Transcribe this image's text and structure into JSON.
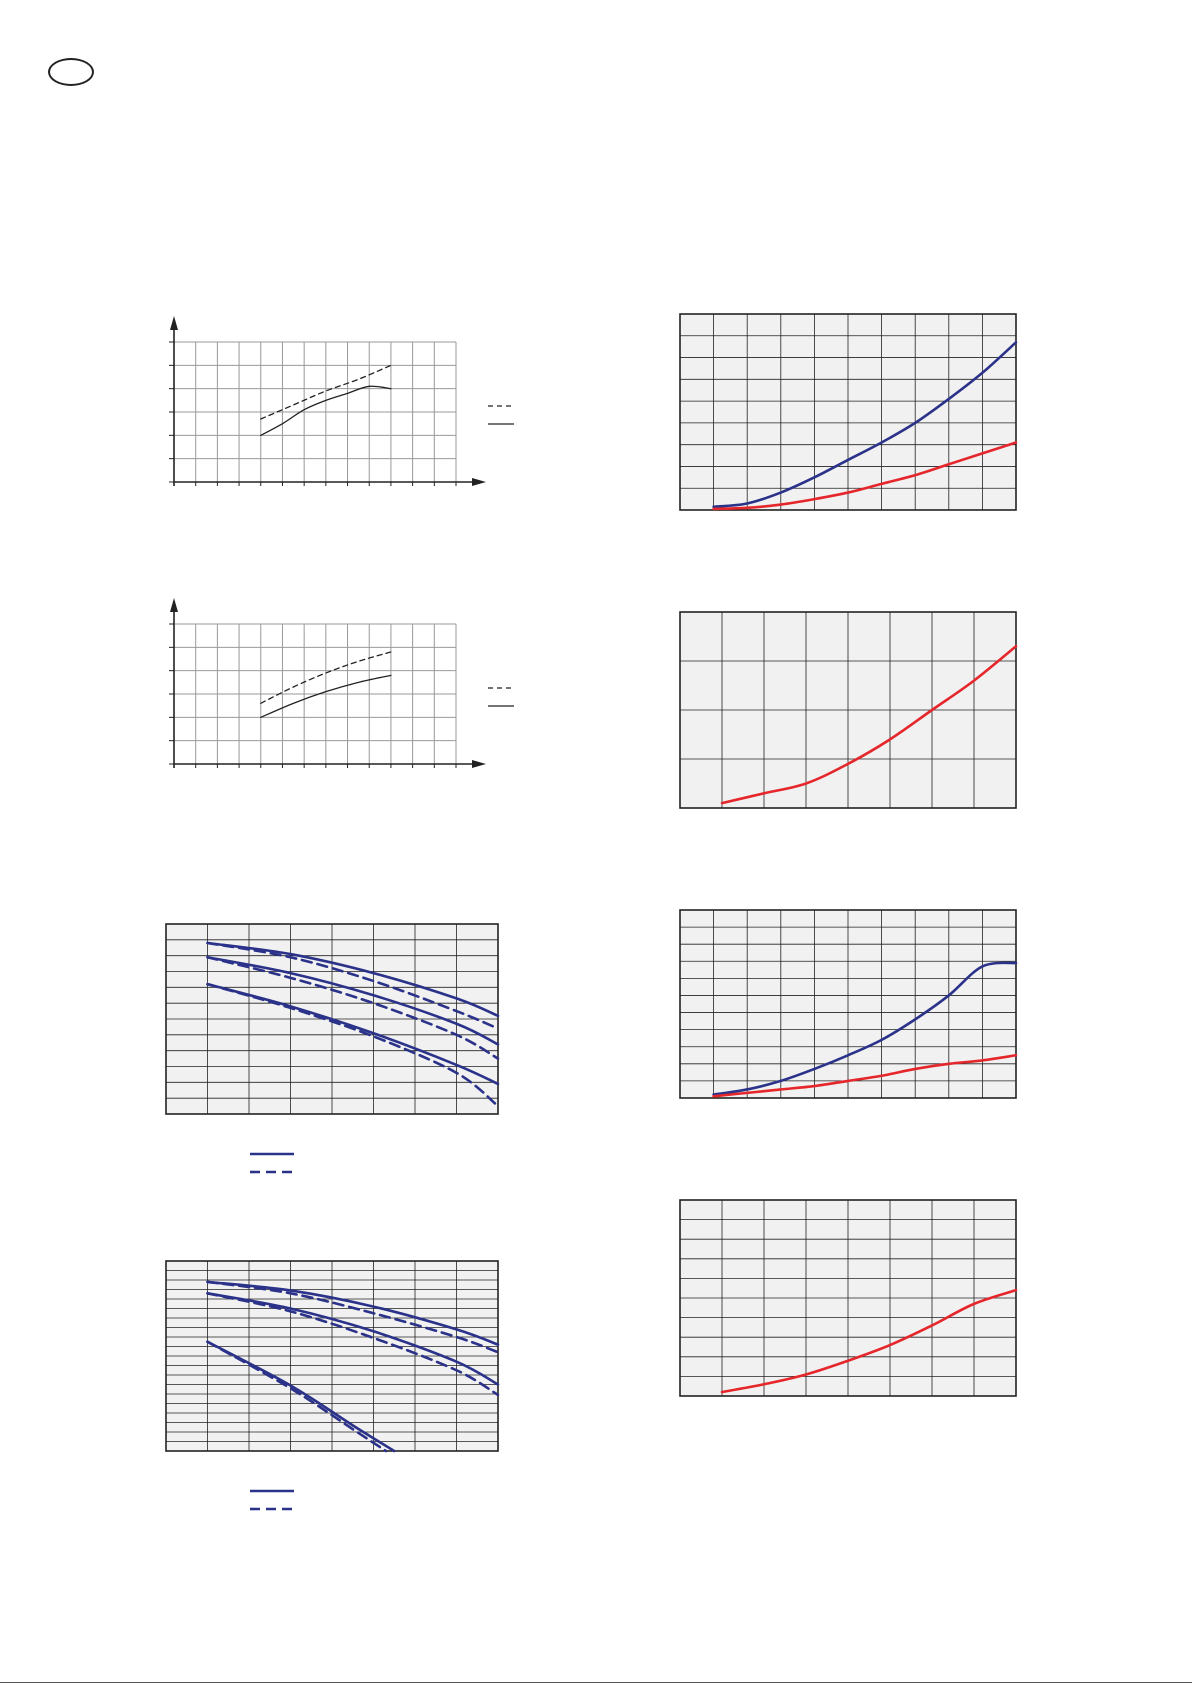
{
  "colors": {
    "navy": "#2b3289",
    "red": "#e5262b",
    "black": "#222222",
    "grid": "#999999",
    "panel": "#f1f1f1"
  },
  "chart_data": [
    {
      "type": "line",
      "grid": true,
      "xlim": [
        0,
        13
      ],
      "ylim": [
        0,
        6
      ],
      "series": [
        {
          "style": "dashed",
          "x": [
            4,
            5.5,
            7,
            8.5,
            10
          ],
          "y": [
            2.7,
            3.3,
            3.9,
            4.4,
            5.0
          ]
        },
        {
          "style": "solid",
          "x": [
            4,
            5,
            6,
            7,
            8,
            9,
            10
          ],
          "y": [
            2.0,
            2.5,
            3.1,
            3.5,
            3.8,
            4.1,
            4.0
          ]
        }
      ],
      "legend": {
        "placement": "right",
        "entries": [
          {
            "style": "dashed"
          },
          {
            "style": "solid"
          }
        ]
      }
    },
    {
      "type": "line",
      "grid": true,
      "xlim": [
        0,
        13
      ],
      "ylim": [
        0,
        6
      ],
      "series": [
        {
          "style": "dashed",
          "x": [
            4,
            5.5,
            7,
            8.5,
            10
          ],
          "y": [
            2.6,
            3.3,
            3.9,
            4.4,
            4.8
          ]
        },
        {
          "style": "solid",
          "x": [
            4,
            5.5,
            7,
            8.5,
            10
          ],
          "y": [
            2.0,
            2.6,
            3.1,
            3.5,
            3.8
          ]
        }
      ],
      "legend": {
        "placement": "right",
        "entries": [
          {
            "style": "dashed"
          },
          {
            "style": "solid"
          }
        ]
      }
    },
    {
      "type": "line",
      "grid": true,
      "xlim": [
        0,
        8
      ],
      "ylim": [
        0,
        12
      ],
      "series": [
        {
          "color": "#2b3289",
          "style": "solid",
          "x": [
            1,
            3,
            5,
            7,
            8
          ],
          "y": [
            10.8,
            10.1,
            8.9,
            7.3,
            6.2
          ]
        },
        {
          "color": "#2b3289",
          "style": "dashed",
          "x": [
            1,
            3,
            5,
            7,
            8
          ],
          "y": [
            10.8,
            9.9,
            8.4,
            6.5,
            5.4
          ]
        },
        {
          "color": "#2b3289",
          "style": "solid",
          "x": [
            1,
            3,
            5,
            7,
            8
          ],
          "y": [
            9.9,
            8.9,
            7.5,
            5.7,
            4.4
          ]
        },
        {
          "color": "#2b3289",
          "style": "dashed",
          "x": [
            1,
            3,
            5,
            7,
            8
          ],
          "y": [
            9.9,
            8.6,
            7.0,
            5.0,
            3.5
          ]
        },
        {
          "color": "#2b3289",
          "style": "solid",
          "x": [
            1,
            3,
            5,
            7,
            8
          ],
          "y": [
            8.2,
            6.8,
            5.1,
            3.1,
            1.9
          ]
        },
        {
          "color": "#2b3289",
          "style": "dashed",
          "x": [
            1,
            3,
            5,
            7,
            8
          ],
          "y": [
            8.2,
            6.7,
            4.9,
            2.6,
            0.5
          ]
        }
      ],
      "legend": {
        "placement": "bottom-left",
        "entries": [
          {
            "style": "solid"
          },
          {
            "style": "dashed"
          }
        ]
      }
    },
    {
      "type": "line",
      "grid": true,
      "xlim": [
        0,
        8
      ],
      "ylim": [
        0,
        20
      ],
      "series": [
        {
          "color": "#2b3289",
          "style": "solid",
          "x": [
            1,
            3,
            5,
            7,
            8
          ],
          "y": [
            17.8,
            16.9,
            15.2,
            12.8,
            11.2
          ]
        },
        {
          "color": "#2b3289",
          "style": "dashed",
          "x": [
            1,
            3,
            5,
            7,
            8
          ],
          "y": [
            17.8,
            16.6,
            14.5,
            12.0,
            10.4
          ]
        },
        {
          "color": "#2b3289",
          "style": "solid",
          "x": [
            1,
            3,
            5,
            7,
            8
          ],
          "y": [
            16.6,
            15.0,
            12.6,
            9.4,
            7.0
          ]
        },
        {
          "color": "#2b3289",
          "style": "dashed",
          "x": [
            1,
            3,
            5,
            7,
            8
          ],
          "y": [
            16.6,
            14.7,
            11.9,
            8.5,
            5.9
          ]
        },
        {
          "color": "#2b3289",
          "style": "solid",
          "x": [
            1,
            3,
            4.5,
            5.5
          ],
          "y": [
            11.5,
            6.9,
            2.7,
            0
          ]
        },
        {
          "color": "#2b3289",
          "style": "dashed",
          "x": [
            1,
            3,
            4.5,
            5.3
          ],
          "y": [
            11.5,
            6.6,
            2.3,
            0
          ]
        }
      ],
      "legend": {
        "placement": "bottom-left",
        "entries": [
          {
            "style": "solid"
          },
          {
            "style": "dashed"
          }
        ]
      }
    },
    {
      "type": "line",
      "grid": true,
      "xlim": [
        0,
        10
      ],
      "ylim": [
        0,
        9
      ],
      "series": [
        {
          "color": "#2b3289",
          "style": "solid",
          "x": [
            1,
            2,
            3,
            4,
            5,
            6,
            7,
            8,
            9,
            10
          ],
          "y": [
            0.15,
            0.3,
            0.8,
            1.5,
            2.3,
            3.1,
            4.0,
            5.1,
            6.3,
            7.7
          ]
        },
        {
          "color": "#e5262b",
          "style": "solid",
          "x": [
            1,
            2,
            3,
            4,
            5,
            6,
            7,
            8,
            9,
            10
          ],
          "y": [
            0.05,
            0.1,
            0.25,
            0.5,
            0.8,
            1.2,
            1.6,
            2.1,
            2.6,
            3.1
          ]
        }
      ]
    },
    {
      "type": "line",
      "grid": true,
      "xlim": [
        0,
        8
      ],
      "ylim": [
        0,
        4
      ],
      "series": [
        {
          "color": "#e5262b",
          "style": "solid",
          "x": [
            1,
            2,
            3,
            4,
            5,
            6,
            7,
            8
          ],
          "y": [
            0.1,
            0.3,
            0.5,
            0.9,
            1.4,
            2.0,
            2.6,
            3.3
          ]
        }
      ]
    },
    {
      "type": "line",
      "grid": true,
      "xlim": [
        0,
        10
      ],
      "ylim": [
        0,
        11
      ],
      "series": [
        {
          "color": "#2b3289",
          "style": "solid",
          "x": [
            1,
            2,
            3,
            4,
            5,
            6,
            7,
            8,
            9,
            10
          ],
          "y": [
            0.2,
            0.5,
            1.0,
            1.7,
            2.5,
            3.4,
            4.6,
            6.0,
            7.7,
            7.9
          ]
        },
        {
          "color": "#e5262b",
          "style": "solid",
          "x": [
            1,
            2,
            3,
            4,
            5,
            6,
            7,
            8,
            9,
            10
          ],
          "y": [
            0.1,
            0.3,
            0.5,
            0.7,
            1.0,
            1.3,
            1.7,
            2.0,
            2.2,
            2.5
          ]
        }
      ]
    },
    {
      "type": "line",
      "grid": true,
      "xlim": [
        0,
        8
      ],
      "ylim": [
        0,
        10
      ],
      "series": [
        {
          "color": "#e5262b",
          "style": "solid",
          "x": [
            1,
            2,
            3,
            4,
            5,
            6,
            7,
            8
          ],
          "y": [
            0.2,
            0.6,
            1.1,
            1.8,
            2.6,
            3.6,
            4.7,
            5.4
          ]
        }
      ]
    }
  ]
}
